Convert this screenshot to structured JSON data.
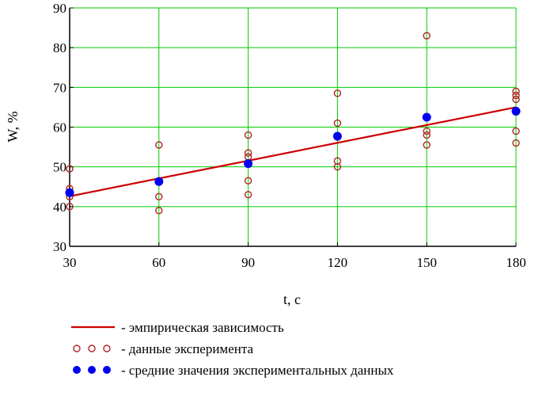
{
  "chart_data": {
    "type": "scatter",
    "xlabel": "t, c",
    "ylabel": "W, %",
    "xlim": [
      30,
      180
    ],
    "ylim": [
      30,
      90
    ],
    "xticks": [
      30,
      60,
      90,
      120,
      150,
      180
    ],
    "yticks": [
      30,
      40,
      50,
      60,
      70,
      80,
      90
    ],
    "grid": true,
    "legend_position": "bottom",
    "colors": {
      "grid": "#00cc00",
      "line": "#cc0000",
      "points": "#b22222",
      "means": "#0000ee",
      "axis": "#000000"
    },
    "series": [
      {
        "name": "- эмпирическая зависимость",
        "kind": "line",
        "points": [
          [
            30,
            42.6
          ],
          [
            180,
            65.0
          ]
        ]
      },
      {
        "name": "- данные эксперимента",
        "kind": "open-circles",
        "points": [
          [
            30,
            49.5
          ],
          [
            30,
            44.5
          ],
          [
            30,
            42.5
          ],
          [
            30,
            40.0
          ],
          [
            60,
            55.5
          ],
          [
            60,
            46.5
          ],
          [
            60,
            42.5
          ],
          [
            60,
            39.0
          ],
          [
            90,
            58.0
          ],
          [
            90,
            53.5
          ],
          [
            90,
            52.5
          ],
          [
            90,
            51.0
          ],
          [
            90,
            46.5
          ],
          [
            90,
            43.0
          ],
          [
            120,
            68.5
          ],
          [
            120,
            61.0
          ],
          [
            120,
            57.5
          ],
          [
            120,
            51.5
          ],
          [
            120,
            50.0
          ],
          [
            150,
            83.0
          ],
          [
            150,
            62.5
          ],
          [
            150,
            59.0
          ],
          [
            150,
            58.0
          ],
          [
            150,
            55.5
          ],
          [
            180,
            69.0
          ],
          [
            180,
            68.0
          ],
          [
            180,
            67.0
          ],
          [
            180,
            64.0
          ],
          [
            180,
            59.0
          ],
          [
            180,
            56.0
          ]
        ]
      },
      {
        "name": "- средние значения экспериментальных данных",
        "kind": "filled-circles",
        "points": [
          [
            30,
            43.5
          ],
          [
            60,
            46.3
          ],
          [
            90,
            50.8
          ],
          [
            120,
            57.7
          ],
          [
            150,
            62.5
          ],
          [
            180,
            64.0
          ]
        ]
      }
    ]
  }
}
